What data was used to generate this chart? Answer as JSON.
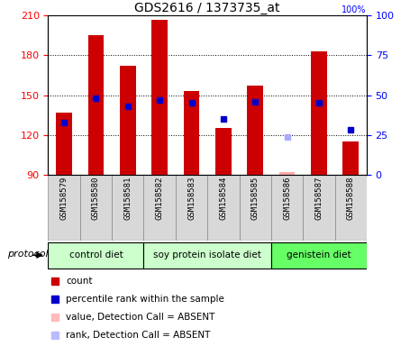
{
  "title": "GDS2616 / 1373735_at",
  "samples": [
    "GSM158579",
    "GSM158580",
    "GSM158581",
    "GSM158582",
    "GSM158583",
    "GSM158584",
    "GSM158585",
    "GSM158586",
    "GSM158587",
    "GSM158588"
  ],
  "bar_bottom": 90,
  "counts": [
    137,
    195,
    172,
    207,
    153,
    125,
    157,
    null,
    183,
    115
  ],
  "absent_values": [
    null,
    null,
    null,
    null,
    null,
    null,
    null,
    92,
    null,
    null
  ],
  "rank_percentile": [
    33,
    48,
    43,
    47,
    45,
    35,
    46,
    null,
    45,
    28
  ],
  "absent_rank_percentile": [
    null,
    null,
    null,
    null,
    null,
    null,
    null,
    24,
    null,
    null
  ],
  "bar_color": "#cc0000",
  "absent_bar_color": "#ffaaaa",
  "rank_color": "#0000cc",
  "absent_rank_color": "#aaaaff",
  "ylim": [
    90,
    210
  ],
  "y2lim": [
    0,
    100
  ],
  "yticks": [
    90,
    120,
    150,
    180,
    210
  ],
  "y2ticks": [
    0,
    25,
    50,
    75,
    100
  ],
  "groups": [
    {
      "label": "control diet",
      "start": 0,
      "end": 3,
      "color": "#ccffcc"
    },
    {
      "label": "soy protein isolate diet",
      "start": 3,
      "end": 7,
      "color": "#ccffcc"
    },
    {
      "label": "genistein diet",
      "start": 7,
      "end": 10,
      "color": "#66ff66"
    }
  ],
  "protocol_label": "protocol",
  "bar_width": 0.5,
  "legend_items": [
    {
      "label": "count",
      "color": "#cc0000"
    },
    {
      "label": "percentile rank within the sample",
      "color": "#0000cc"
    },
    {
      "label": "value, Detection Call = ABSENT",
      "color": "#ffbbbb"
    },
    {
      "label": "rank, Detection Call = ABSENT",
      "color": "#bbbbff"
    }
  ],
  "sample_bg_color": "#d8d8d8",
  "sample_sep_color": "#888888"
}
